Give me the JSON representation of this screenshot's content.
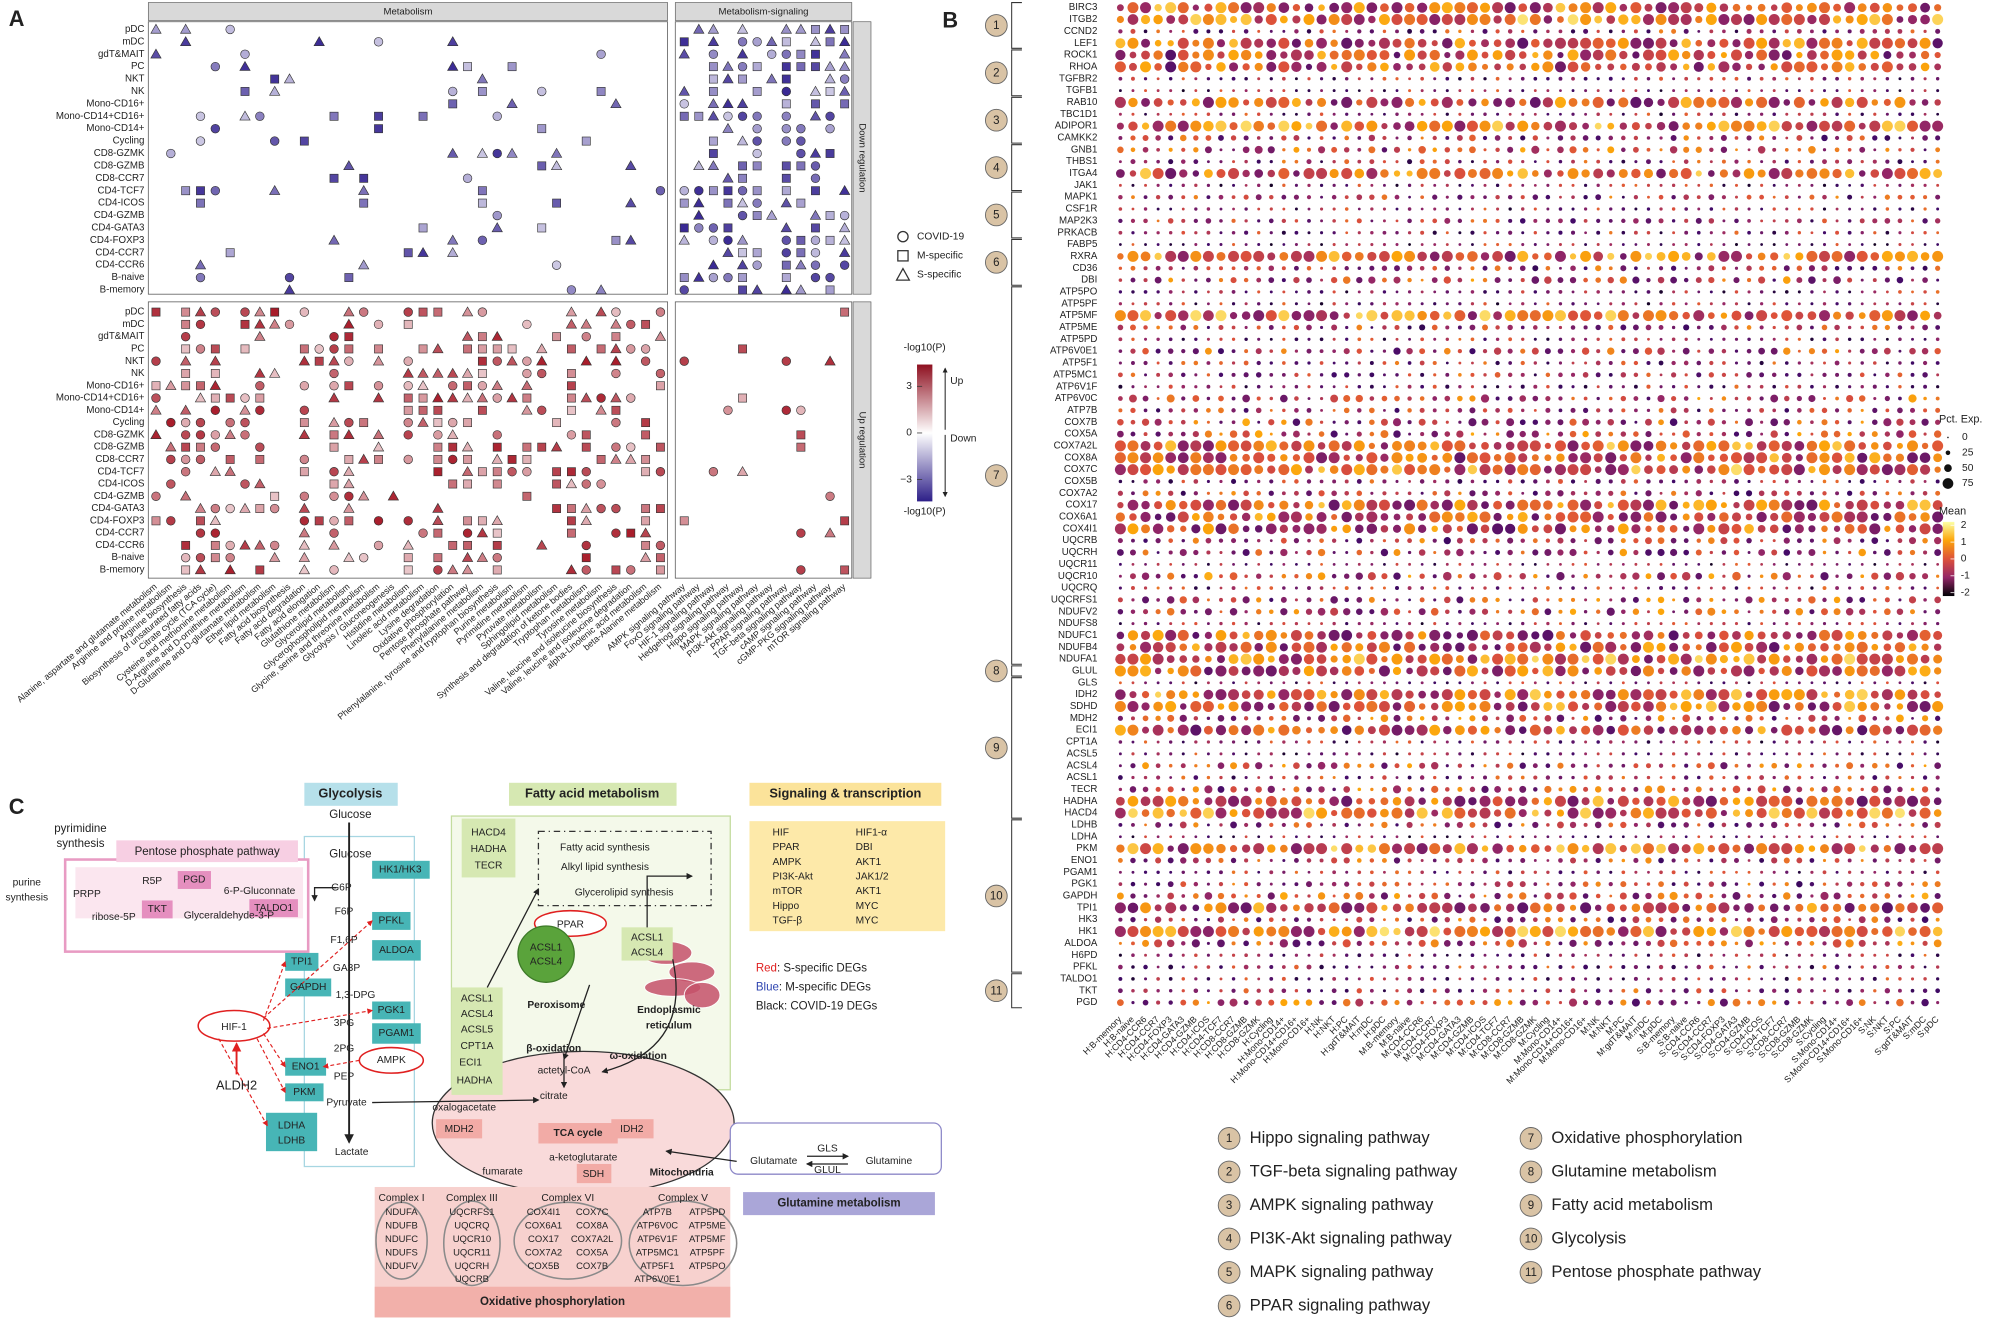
{
  "panel_labels": [
    "A",
    "B",
    "C"
  ],
  "panel_a": {
    "strips": [
      "Metabolism",
      "Metabolism-signaling"
    ],
    "row_strips": [
      "Down regulation",
      "Up regulation"
    ],
    "rows": [
      "pDC",
      "mDC",
      "gdT&MAIT",
      "PC",
      "NKT",
      "NK",
      "Mono-CD16+",
      "Mono-CD14+CD16+",
      "Mono-CD14+",
      "Cycling",
      "CD8-GZMK",
      "CD8-GZMB",
      "CD8-CCR7",
      "CD4-TCF7",
      "CD4-ICOS",
      "CD4-GZMB",
      "CD4-GATA3",
      "CD4-FOXP3",
      "CD4-CCR7",
      "CD4-CCR6",
      "B-naive",
      "B-memory"
    ],
    "columns_metabolism": [
      "Alanine, aspartate and glutamate metabolism",
      "Arginine and proline metabolism",
      "Arginine biosynthesis",
      "Biosynthesis of unsaturated fatty acids",
      "Citrate cycle (TCA cycle)",
      "Cysteine and methionine metabolism",
      "D-Arginine and D-ornithine metabolism",
      "D-Glutamine and D-glutamate metabolism",
      "Ether lipid metabolism",
      "Fatty acid biosynthesis",
      "Fatty acid degradation",
      "Fatty acid elongation",
      "Glutathione metabolism",
      "Glycerolipid metabolism",
      "Glycerophospholipid metabolism",
      "Glycine, serine and threonine metabolism",
      "Glycolysis / Gluconeogenesis",
      "Histidine metabolism",
      "Linoleic acid metabolism",
      "Lysine degradation",
      "Oxidative phosphorylation",
      "Pentose phosphate pathway",
      "Phenylalanine metabolism",
      "Phenylalanine, tyrosine and tryptophan biosynthesis",
      "Purine metabolism",
      "Pyrimidine metabolism",
      "Pyruvate metabolism",
      "Sphingolipid metabolism",
      "Synthesis and degradation of ketone bodies",
      "Tryptophan metabolism",
      "Tyrosine metabolism",
      "Valine, leucine and isoleucine biosynthesis",
      "Valine, leucine and isoleucine degradation",
      "alpha-Linolenic acid metabolism",
      "beta-Alanine metabolism"
    ],
    "columns_signaling": [
      "AMPK signaling pathway",
      "FoxO signaling pathway",
      "HIF-1 signaling pathway",
      "Hedgehog signaling pathway",
      "Hippo signaling pathway",
      "MAPK signaling pathway",
      "PI3K-Akt signaling pathway",
      "PPAR signaling pathway",
      "TGF-beta signaling pathway",
      "cAMP signaling pathway",
      "cGMP-PKG signaling pathway",
      "mTOR signaling pathway"
    ],
    "shape_legend": [
      "COVID-19",
      "M-specific",
      "S-specific"
    ],
    "color_legend": {
      "title": "-log10(P)",
      "up": "Up",
      "down": "Down",
      "ticks": [
        3,
        0,
        {
          "value": -3,
          "label": "−3"
        }
      ]
    }
  },
  "panel_b": {
    "group_numbers": [
      1,
      2,
      3,
      4,
      5,
      6,
      7,
      8,
      9,
      10,
      11
    ],
    "genes": [
      "BIRC3",
      "ITGB2",
      "CCND2",
      "LEF1",
      "ROCK1",
      "RHOA",
      "TGFBR2",
      "TGFB1",
      "RAB10",
      "TBC1D1",
      "ADIPOR1",
      "CAMKK2",
      "GNB1",
      "THBS1",
      "ITGA4",
      "JAK1",
      "MAPK1",
      "CSF1R",
      "MAP2K3",
      "PRKACB",
      "FABP5",
      "RXRA",
      "CD36",
      "DBI",
      "ATP5PO",
      "ATP5PF",
      "ATP5MF",
      "ATP5ME",
      "ATP5PD",
      "ATP6V0E1",
      "ATP5F1",
      "ATP5MC1",
      "ATP6V1F",
      "ATP6V0C",
      "ATP7B",
      "COX7B",
      "COX5A",
      "COX7A2L",
      "COX8A",
      "COX7C",
      "COX5B",
      "COX7A2",
      "COX17",
      "COX6A1",
      "COX4I1",
      "UQCRB",
      "UQCRH",
      "UQCR11",
      "UQCR10",
      "UQCRQ",
      "UQCRFS1",
      "NDUFV2",
      "NDUFS8",
      "NDUFC1",
      "NDUFB4",
      "NDUFA1",
      "GLUL",
      "GLS",
      "IDH2",
      "SDHD",
      "MDH2",
      "ECI1",
      "CPT1A",
      "ACSL5",
      "ACSL4",
      "ACSL1",
      "TECR",
      "HADHA",
      "HACD4",
      "LDHB",
      "LDHA",
      "PKM",
      "ENO1",
      "PGAM1",
      "PGK1",
      "GAPDH",
      "TPI1",
      "HK3",
      "HK1",
      "ALDOA",
      "H6PD",
      "PFKL",
      "TALDO1",
      "TKT",
      "PGD"
    ],
    "columns": [
      "H:B-memory",
      "H:B-naive",
      "H:CD4-CCR6",
      "H:CD4-CCR7",
      "H:CD4-FOXP3",
      "H:CD4-GATA3",
      "H:CD4-GZMB",
      "H:CD4-ICOS",
      "H:CD4-TCF7",
      "H:CD8-CCR7",
      "H:CD8-GZMB",
      "H:CD8-GZMK",
      "H:Cycling",
      "H:Mono-CD14+",
      "H:Mono-CD14+CD16+",
      "H:Mono-CD16+",
      "H:NK",
      "H:NKT",
      "H:PC",
      "H:gdT&MAIT",
      "H:mDC",
      "H:pDC",
      "M:B-memory",
      "M:B-naive",
      "M:CD4-CCR6",
      "M:CD4-CCR7",
      "M:CD4-FOXP3",
      "M:CD4-GATA3",
      "M:CD4-GZMB",
      "M:CD4-ICOS",
      "M:CD4-TCF7",
      "M:CD8-CCR7",
      "M:CD8-GZMB",
      "M:CD8-GZMK",
      "M:Cycling",
      "M:Mono-CD14+",
      "M:Mono-CD14+CD16+",
      "M:Mono-CD16+",
      "M:NK",
      "M:NKT",
      "M:PC",
      "M:gdT&MAIT",
      "M:mDC",
      "M:pDC",
      "S:B-memory",
      "S:B-naive",
      "S:CD4-CCR6",
      "S:CD4-CCR7",
      "S:CD4-FOXP3",
      "S:CD4-GATA3",
      "S:CD4-GZMB",
      "S:CD4-ICOS",
      "S:CD4-TCF7",
      "S:CD8-CCR7",
      "S:CD8-GZMB",
      "S:CD8-GZMK",
      "S:Cycling",
      "S:Mono-CD14+",
      "S:Mono-CD14+CD16+",
      "S:Mono-CD16+",
      "S:NK",
      "S:NKT",
      "S:PC",
      "S:gdT&MAIT",
      "S:mDC",
      "S:pDC"
    ],
    "size_legend": {
      "title": "Pct. Exp.",
      "ticks": [
        0,
        25,
        50,
        75
      ]
    },
    "color_legend": {
      "title": "Mean",
      "ticks": [
        2,
        1,
        0,
        -1,
        -2
      ]
    },
    "pathways": [
      "Hippo signaling pathway",
      "TGF-beta signaling pathway",
      "AMPK signaling pathway",
      "PI3K-Akt signaling pathway",
      "MAPK signaling pathway",
      "PPAR signaling pathway",
      "Oxidative phosphorylation",
      "Glutamine metabolism",
      "Fatty acid metabolism",
      "Glycolysis",
      "Pentose phosphate pathway"
    ]
  },
  "panel_c": {
    "labels": {
      "title_glycolysis": "Glycolysis",
      "glucose_1": "Glucose",
      "pyrimidine": "pyrimidine",
      "pyrimidine_synthesis": "synthesis",
      "title_pentose": "Pentose phosphate pathway",
      "glucose_2": "Glucose",
      "purine": "purine",
      "purine_synthesis": "synthesis",
      "prpp": "PRPP",
      "r5p": "R5P",
      "pgd": "PGD",
      "gluconate": "6-P-Gluconnate",
      "tkt": "TKT",
      "ribose": "ribose-5P",
      "ga3p_pp": "Glyceraldehyde-3-P",
      "taldo1": "TALDO1",
      "g6p": "G6P",
      "hk": "HK1/HK3",
      "f6p": "F6P",
      "pfkl": "PFKL",
      "f16p": "F1,6P",
      "aldoa": "ALDOA",
      "tpi1": "TPI1",
      "ga3p": "GA3P",
      "gapdh": "GAPDH",
      "dpg": "1,3-DPG",
      "pgk1": "PGK1",
      "pg3": "3PG",
      "pgam1": "PGAM1",
      "pg2": "2PG",
      "eno1": "ENO1",
      "pep": "PEP",
      "ampk": "AMPK",
      "pkm": "PKM",
      "pyruvate": "Pyruvate",
      "ldha": "LDHA",
      "ldhb": "LDHB",
      "lactate": "Lactate",
      "hif1": "HIF-1",
      "aldh2": "ALDH2",
      "title_fatty": "Fatty acid metabolism",
      "hacd4": "HACD4",
      "hadha_1": "HADHA",
      "tecr": "TECR",
      "fa_synth": "Fatty acid synthesis",
      "alkyl": "Alkyl lipid synthesis",
      "glycerolipid": "Glycerolipid synthesis",
      "ppar": "PPAR",
      "acsl1_p": "ACSL1",
      "acsl4_p": "ACSL4",
      "peroxisome": "Peroxisome",
      "acsl1_er": "ACSL1",
      "acsl4_er": "ACSL4",
      "er_1": "Endoplasmic",
      "er_2": "reticulum",
      "acsl1": "ACSL1",
      "acsl4": "ACSL4",
      "acsl5": "ACSL5",
      "cpt1a": "CPT1A",
      "eci1": "ECI1",
      "hadha_2": "HADHA",
      "beta_ox": "β-oxidation",
      "acetyl": "actetyl-CoA",
      "citrate": "citrate",
      "omega": "ω-oxidation",
      "oxaloacetate": "oxalogacetate",
      "mdh2": "MDH2",
      "tca": "TCA cycle",
      "idh2": "IDH2",
      "akg": "a-ketoglutarate",
      "fumarate": "fumarate",
      "sdh": "SDH",
      "mito": "Mitochondria",
      "title_signaling": "Signaling & transcription",
      "glutamate": "Glutamate",
      "gls": "GLS",
      "glul": "GLUL",
      "glutamine": "Glutamine",
      "title_glutamine": "Glutamine metabolism",
      "title_oxphos": "Oxidative phosphorylation",
      "legend_red": "Red",
      "legend_red_text": ": S-specific DEGs",
      "legend_blue": "Blue",
      "legend_blue_text": ": M-specific DEGs",
      "legend_black": "Black: COVID-19 DEGs"
    },
    "signaling_left": [
      "HIF",
      "PPAR",
      "AMPK",
      "PI3K-Akt",
      "mTOR",
      "Hippo",
      "TGF-β"
    ],
    "signaling_right": [
      "HIF1-α",
      "DBI",
      "AKT1",
      "JAK1/2",
      "AKT1",
      "MYC",
      "MYC"
    ],
    "complexes": [
      {
        "name": "Complex I",
        "columns": [
          [
            "NDUFA",
            "NDUFB",
            "NDUFC",
            "NDUFS",
            "NDUFV"
          ]
        ]
      },
      {
        "name": "Complex III",
        "columns": [
          [
            "UQCRFS1",
            "UQCRQ",
            "UQCR10",
            "UQCR11",
            "UQCRH",
            "UQCRB"
          ]
        ]
      },
      {
        "name": "Complex VI",
        "columns": [
          [
            "COX4I1",
            "COX6A1",
            "COX17",
            "COX7A2",
            "COX5B"
          ],
          [
            "COX7C",
            "COX8A",
            "COX7A2L",
            "COX5A",
            "COX7B"
          ]
        ]
      },
      {
        "name": "Complex V",
        "columns": [
          [
            "ATP7B",
            "ATP6V0C",
            "ATP6V1F",
            "ATP5MC1",
            "ATP5F1",
            "ATP6V0E1"
          ],
          [
            "ATP5PD",
            "ATP5ME",
            "ATP5MF",
            "ATP5PF",
            "ATP5PO"
          ]
        ]
      }
    ]
  }
}
